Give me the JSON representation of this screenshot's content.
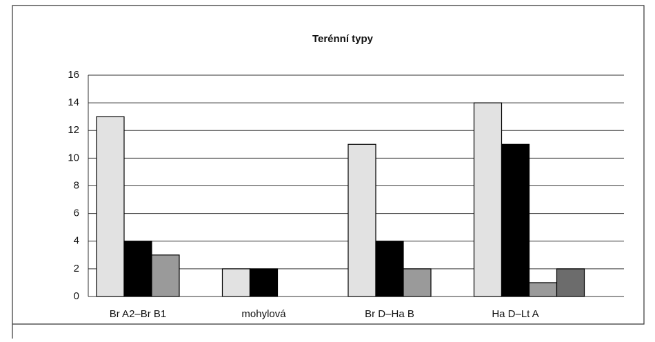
{
  "chart_data": {
    "type": "bar",
    "title": "Terénní typy",
    "categories": [
      "Br A2–Br B1",
      "mohylová",
      "Br D–Ha B",
      "Ha D–Lt A"
    ],
    "series": [
      {
        "color": "#e2e2e2",
        "values": [
          13,
          2,
          11,
          14
        ]
      },
      {
        "color": "#000000",
        "values": [
          4,
          2,
          4,
          11
        ]
      },
      {
        "color": "#9a9a9a",
        "values": [
          3,
          null,
          2,
          1
        ]
      },
      {
        "color": "#6c6c6c",
        "values": [
          null,
          null,
          null,
          2
        ]
      }
    ],
    "ylim": [
      0,
      16
    ],
    "yticks": [
      0,
      2,
      4,
      6,
      8,
      10,
      12,
      14,
      16
    ],
    "grid": true
  }
}
